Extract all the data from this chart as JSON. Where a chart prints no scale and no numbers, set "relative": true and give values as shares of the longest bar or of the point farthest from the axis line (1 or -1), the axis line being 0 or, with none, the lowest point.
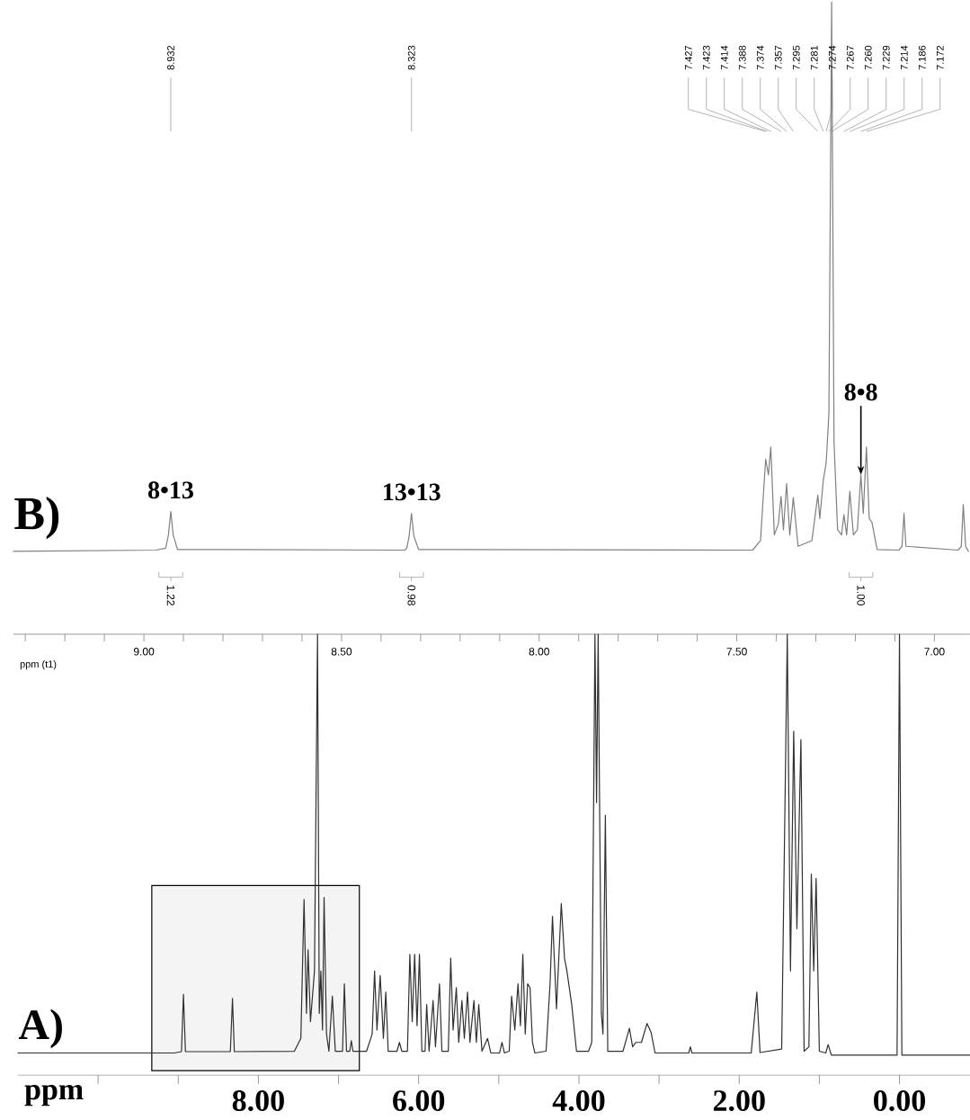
{
  "chart_data": [
    {
      "type": "line",
      "title": "B)",
      "xlabel": "ppm (t1)",
      "relative": true,
      "xlim": [
        9.33,
        6.91
      ],
      "xticks": [
        {
          "value": 9.3,
          "label": null
        },
        {
          "value": 9.2,
          "label": null
        },
        {
          "value": 9.1,
          "label": null
        },
        {
          "value": 9.0,
          "label": "9.00"
        },
        {
          "value": 8.9,
          "label": null
        },
        {
          "value": 8.8,
          "label": null
        },
        {
          "value": 8.7,
          "label": null
        },
        {
          "value": 8.6,
          "label": null
        },
        {
          "value": 8.5,
          "label": "8.50"
        },
        {
          "value": 8.4,
          "label": null
        },
        {
          "value": 8.3,
          "label": null
        },
        {
          "value": 8.2,
          "label": null
        },
        {
          "value": 8.1,
          "label": null
        },
        {
          "value": 8.0,
          "label": "8.00"
        },
        {
          "value": 7.9,
          "label": null
        },
        {
          "value": 7.8,
          "label": null
        },
        {
          "value": 7.7,
          "label": null
        },
        {
          "value": 7.6,
          "label": null
        },
        {
          "value": 7.5,
          "label": "7.50"
        },
        {
          "value": 7.4,
          "label": null
        },
        {
          "value": 7.3,
          "label": null
        },
        {
          "value": 7.2,
          "label": null
        },
        {
          "value": 7.1,
          "label": null
        },
        {
          "value": 7.0,
          "label": "7.00"
        }
      ],
      "series": [
        {
          "color": "#808080",
          "x": [
            9.33,
            8.97,
            8.945,
            8.938,
            8.932,
            8.926,
            8.915,
            8.34,
            8.335,
            8.329,
            8.323,
            8.317,
            8.305,
            7.46,
            7.44,
            7.427,
            7.42,
            7.414,
            7.405,
            7.395,
            7.388,
            7.382,
            7.374,
            7.366,
            7.357,
            7.345,
            7.31,
            7.295,
            7.29,
            7.281,
            7.274,
            7.267,
            7.26,
            7.254,
            7.245,
            7.235,
            7.229,
            7.222,
            7.214,
            7.205,
            7.195,
            7.186,
            7.18,
            7.172,
            7.165,
            7.158,
            7.145,
            7.09,
            7.082,
            7.077,
            7.072,
            6.94,
            6.932,
            6.927,
            6.921,
            6.914
          ],
          "values": [
            0.131,
            0.133,
            0.136,
            0.157,
            0.194,
            0.157,
            0.134,
            0.133,
            0.136,
            0.155,
            0.191,
            0.155,
            0.134,
            0.133,
            0.148,
            0.277,
            0.252,
            0.296,
            0.157,
            0.174,
            0.218,
            0.165,
            0.238,
            0.157,
            0.216,
            0.139,
            0.148,
            0.22,
            0.183,
            0.244,
            0.27,
            0.348,
            1,
            0.304,
            0.165,
            0.157,
            0.189,
            0.157,
            0.226,
            0.157,
            0.165,
            0.252,
            0.191,
            0.296,
            0.183,
            0.177,
            0.134,
            0.133,
            0.139,
            0.191,
            0.139,
            0.133,
            0.139,
            0.205,
            0.139,
            0.131
          ]
        }
      ],
      "annotations": [
        {
          "text": "8.932",
          "x": 8.932
        },
        {
          "text": "8.323",
          "x": 8.323
        },
        {
          "text": "7.427",
          "x": 7.427
        },
        {
          "text": "7.423",
          "x": 7.423
        },
        {
          "text": "7.414",
          "x": 7.414
        },
        {
          "text": "7.388",
          "x": 7.388
        },
        {
          "text": "7.374",
          "x": 7.374
        },
        {
          "text": "7.357",
          "x": 7.357
        },
        {
          "text": "7.295",
          "x": 7.295
        },
        {
          "text": "7.281",
          "x": 7.281
        },
        {
          "text": "7.274",
          "x": 7.274
        },
        {
          "text": "7.267",
          "x": 7.267
        },
        {
          "text": "7.260",
          "x": 7.26
        },
        {
          "text": "7.229",
          "x": 7.229
        },
        {
          "text": "7.214",
          "x": 7.214
        },
        {
          "text": "7.186",
          "x": 7.186
        },
        {
          "text": "7.172",
          "x": 7.172
        },
        {
          "text": "8•13",
          "x": 8.932,
          "y": 0.194
        },
        {
          "text": "13•13",
          "x": 8.323,
          "y": 0.191
        },
        {
          "text": "8•8",
          "x": 7.186,
          "y": 0.252
        },
        "1.22",
        "0.98",
        "1.00"
      ]
    },
    {
      "type": "line",
      "title": "A)",
      "xlabel": "ppm",
      "relative": true,
      "xlim": [
        11.0,
        -0.88
      ],
      "xticks": [
        {
          "value": 10,
          "label": null
        },
        {
          "value": 9,
          "label": null
        },
        {
          "value": 8,
          "label": "8.00"
        },
        {
          "value": 7,
          "label": null
        },
        {
          "value": 6,
          "label": "6.00"
        },
        {
          "value": 5,
          "label": null
        },
        {
          "value": 4,
          "label": "4.00"
        },
        {
          "value": 3,
          "label": null
        },
        {
          "value": 2,
          "label": "2.00"
        },
        {
          "value": 1,
          "label": null
        },
        {
          "value": 0,
          "label": "0.00"
        }
      ],
      "bands": [
        {
          "axis": "x",
          "from": 9.33,
          "to": 6.74,
          "color": "#f4f4f4"
        }
      ],
      "series": [
        {
          "color": "#303030",
          "x": [
            11.0,
            9.05,
            8.96,
            8.935,
            8.91,
            8.35,
            8.323,
            8.3,
            7.55,
            7.47,
            7.43,
            7.4,
            7.38,
            7.35,
            7.3,
            7.262,
            7.24,
            7.22,
            7.2,
            7.18,
            7.15,
            7.12,
            7.077,
            7.04,
            6.95,
            6.927,
            6.9,
            6.86,
            6.84,
            6.82,
            6.65,
            6.58,
            6.55,
            6.52,
            6.48,
            6.44,
            6.41,
            6.38,
            6.27,
            6.24,
            6.21,
            6.14,
            6.11,
            6.08,
            6.05,
            6.02,
            5.99,
            5.96,
            5.92,
            5.9,
            5.87,
            5.82,
            5.79,
            5.74,
            5.71,
            5.63,
            5.6,
            5.57,
            5.53,
            5.5,
            5.46,
            5.43,
            5.39,
            5.36,
            5.31,
            5.28,
            5.25,
            5.21,
            5.14,
            5.1,
            4.99,
            4.96,
            4.93,
            4.87,
            4.84,
            4.8,
            4.76,
            4.73,
            4.7,
            4.67,
            4.64,
            4.61,
            4.58,
            4.55,
            4.41,
            4.36,
            4.33,
            4.28,
            4.22,
            4.18,
            4.15,
            4.09,
            4.03,
            3.88,
            3.84,
            3.8,
            3.78,
            3.76,
            3.72,
            3.7,
            3.67,
            3.64,
            3.45,
            3.37,
            3.33,
            3.29,
            3.22,
            3.15,
            3.1,
            3.05,
            2.63,
            2.61,
            2.59,
            1.85,
            1.78,
            1.74,
            1.47,
            1.4,
            1.36,
            1.32,
            1.28,
            1.23,
            1.19,
            1.13,
            1.1,
            1.07,
            1.04,
            1.0,
            0.92,
            0.89,
            0.85,
            0.03,
            0.0,
            -0.03,
            -0.88
          ],
          "values": [
            0.05,
            0.05,
            0.053,
            0.183,
            0.053,
            0.053,
            0.174,
            0.053,
            0.054,
            0.083,
            0.398,
            0.14,
            0.284,
            0.121,
            0.236,
            1,
            0.14,
            0.236,
            0.102,
            0.403,
            0.093,
            0.054,
            0.179,
            0.054,
            0.054,
            0.207,
            0.054,
            0.054,
            0.078,
            0.054,
            0.054,
            0.093,
            0.236,
            0.102,
            0.226,
            0.083,
            0.188,
            0.054,
            0.054,
            0.074,
            0.054,
            0.054,
            0.274,
            0.121,
            0.274,
            0.112,
            0.274,
            0.054,
            0.054,
            0.16,
            0.054,
            0.169,
            0.064,
            0.207,
            0.054,
            0.054,
            0.265,
            0.102,
            0.198,
            0.074,
            0.169,
            0.083,
            0.188,
            0.074,
            0.169,
            0.074,
            0.16,
            0.054,
            0.083,
            0.05,
            0.05,
            0.074,
            0.05,
            0.054,
            0.179,
            0.102,
            0.207,
            0.112,
            0.274,
            0.093,
            0.207,
            0.198,
            0.074,
            0.05,
            0.054,
            0.207,
            0.36,
            0.15,
            0.389,
            0.265,
            0.236,
            0.16,
            0.054,
            0.054,
            0.074,
            1,
            0.618,
            1,
            0.14,
            0.093,
            0.589,
            0.054,
            0.054,
            0.106,
            0.064,
            0.074,
            0.074,
            0.117,
            0.097,
            0.05,
            0.05,
            0.064,
            0.05,
            0.05,
            0.188,
            0.051,
            0.059,
            1,
            0.236,
            0.78,
            0.332,
            0.761,
            0.054,
            0.064,
            0.456,
            0.236,
            0.446,
            0.054,
            0.05,
            0.069,
            0.045,
            0.045,
            1,
            0.045,
            0.045
          ]
        }
      ]
    }
  ]
}
